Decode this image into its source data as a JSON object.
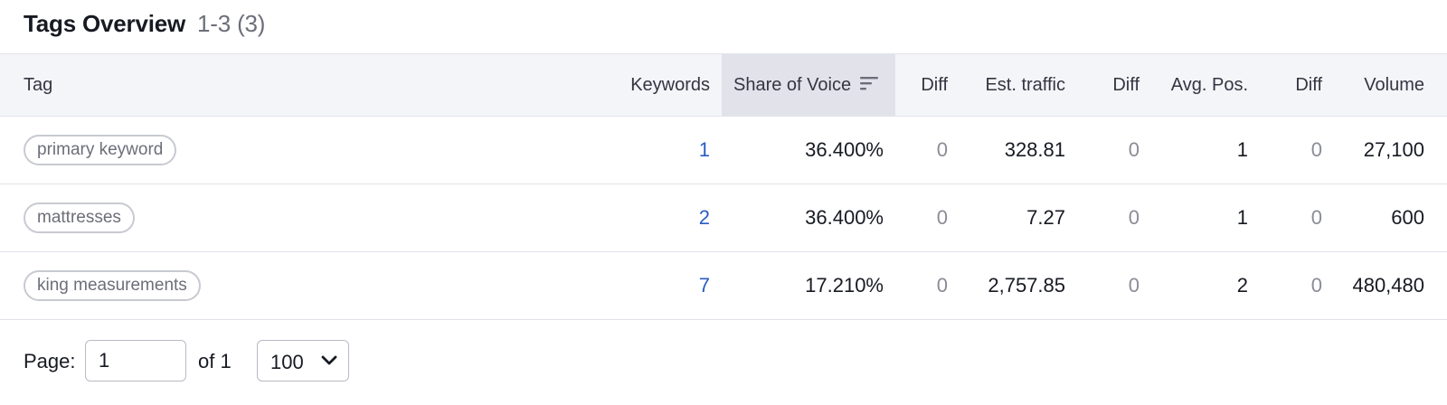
{
  "header": {
    "title": "Tags Overview",
    "range": "1-3",
    "total": "(3)"
  },
  "columns": {
    "tag": "Tag",
    "keywords": "Keywords",
    "share_of_voice": "Share of Voice",
    "diff1": "Diff",
    "est_traffic": "Est. traffic",
    "diff2": "Diff",
    "avg_pos": "Avg. Pos.",
    "diff3": "Diff",
    "volume": "Volume"
  },
  "sort_icon": "sort-descending-icon",
  "rows": [
    {
      "tag": "primary keyword",
      "keywords": "1",
      "sov": "36.400%",
      "diff1": "0",
      "traffic": "328.81",
      "diff2": "0",
      "pos": "1",
      "diff3": "0",
      "volume": "27,100"
    },
    {
      "tag": "mattresses",
      "keywords": "2",
      "sov": "36.400%",
      "diff1": "0",
      "traffic": "7.27",
      "diff2": "0",
      "pos": "1",
      "diff3": "0",
      "volume": "600"
    },
    {
      "tag": "king measurements",
      "keywords": "7",
      "sov": "17.210%",
      "diff1": "0",
      "traffic": "2,757.85",
      "diff2": "0",
      "pos": "2",
      "diff3": "0",
      "volume": "480,480"
    }
  ],
  "pagination": {
    "page_label": "Page:",
    "page_value": "1",
    "of_label": "of 1",
    "per_page": "100",
    "per_page_icon": "chevron-down-icon"
  },
  "colors": {
    "link": "#2a5cc4",
    "header_bg": "#f4f5f9",
    "sorted_header_bg": "#e2e3ea",
    "border": "#e1e3ea",
    "muted": "#8a8c96"
  }
}
